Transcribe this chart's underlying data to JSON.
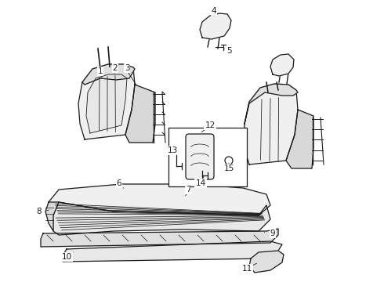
{
  "bg_color": "#ffffff",
  "line_color": "#1a1a1a",
  "fig_width": 4.9,
  "fig_height": 3.6,
  "dpi": 100,
  "font_size": 7.5
}
